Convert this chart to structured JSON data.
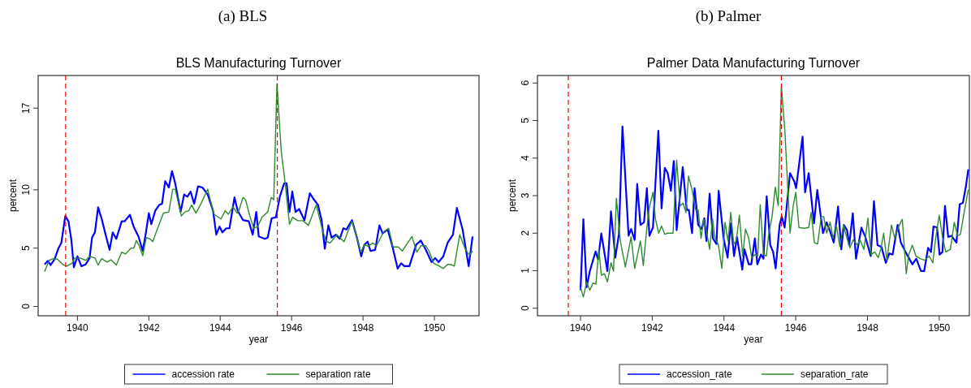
{
  "chart_data": [
    {
      "type": "line",
      "title": "BLS Manufacturing Turnover",
      "annotations": [
        "(a) BLS"
      ],
      "xlabel": "year",
      "ylabel": "percent",
      "xlim": [
        1938.9,
        1951.25
      ],
      "xticks": [
        1940,
        1942,
        1944,
        1946,
        1948,
        1950
      ],
      "ylim": [
        -0.8,
        19.8
      ],
      "yticks": [
        0,
        5,
        10,
        17
      ],
      "legend": "bottom",
      "grid": false,
      "line_style": "solid",
      "marker": "none",
      "ref_lines": [
        {
          "axis": "x",
          "value": 1939.67,
          "color": "#ff0000",
          "line_style": "dashed"
        },
        {
          "axis": "x",
          "value": 1945.6,
          "color": "#ff0000",
          "line_style": "dashed"
        }
      ],
      "series": [
        {
          "name": "accession rate",
          "color": "#0000ff",
          "x": [
            1939.08,
            1939.17,
            1939.25,
            1939.36,
            1939.47,
            1939.55,
            1939.66,
            1939.75,
            1939.83,
            1939.9,
            1940.0,
            1940.11,
            1940.23,
            1940.34,
            1940.41,
            1940.49,
            1940.58,
            1940.68,
            1940.79,
            1940.9,
            1940.99,
            1941.09,
            1941.24,
            1941.32,
            1941.47,
            1941.58,
            1941.71,
            1941.83,
            1941.92,
            1942.0,
            1942.07,
            1942.18,
            1942.29,
            1942.37,
            1942.46,
            1942.56,
            1942.65,
            1942.74,
            1942.89,
            1942.99,
            1943.08,
            1943.17,
            1943.27,
            1943.38,
            1943.5,
            1943.65,
            1943.8,
            1943.89,
            1943.98,
            1944.06,
            1944.17,
            1944.26,
            1944.4,
            1944.49,
            1944.64,
            1944.8,
            1944.91,
            1945.01,
            1945.08,
            1945.25,
            1945.33,
            1945.44,
            1945.56,
            1945.67,
            1945.79,
            1945.86,
            1945.94,
            1946.02,
            1946.11,
            1946.21,
            1946.36,
            1946.51,
            1946.63,
            1946.74,
            1946.84,
            1946.93,
            1947.03,
            1947.12,
            1947.24,
            1947.35,
            1947.45,
            1947.54,
            1947.69,
            1947.83,
            1947.95,
            1948.04,
            1948.13,
            1948.21,
            1948.34,
            1948.46,
            1948.55,
            1948.69,
            1948.82,
            1948.97,
            1949.07,
            1949.16,
            1949.3,
            1949.49,
            1949.62,
            1949.76,
            1949.92,
            1950.02,
            1950.12,
            1950.25,
            1950.37,
            1950.52,
            1950.63,
            1950.79,
            1950.96,
            1951.07
          ],
          "values": [
            3.6,
            3.9,
            3.55,
            4.05,
            5.0,
            5.45,
            7.75,
            7.3,
            5.7,
            3.35,
            4.3,
            3.45,
            3.6,
            4.15,
            5.9,
            6.35,
            8.5,
            7.5,
            6.15,
            4.85,
            6.35,
            5.8,
            7.3,
            7.3,
            7.85,
            6.8,
            6.0,
            4.75,
            6.35,
            8.0,
            7.05,
            8.2,
            8.7,
            8.8,
            10.75,
            10.2,
            11.6,
            10.55,
            8.1,
            9.6,
            9.4,
            9.85,
            8.8,
            10.3,
            10.2,
            9.6,
            8.2,
            6.15,
            6.85,
            6.35,
            6.7,
            6.7,
            9.35,
            8.2,
            7.4,
            7.3,
            6.15,
            8.1,
            6.0,
            5.8,
            5.9,
            7.55,
            7.65,
            9.4,
            10.55,
            10.55,
            8.1,
            9.85,
            8.1,
            8.35,
            7.4,
            9.7,
            9.15,
            8.7,
            7.4,
            4.95,
            6.95,
            5.9,
            6.15,
            5.8,
            6.7,
            6.6,
            7.4,
            5.9,
            4.3,
            5.3,
            5.55,
            4.75,
            4.85,
            6.95,
            6.25,
            6.6,
            5.2,
            3.25,
            3.7,
            3.45,
            3.45,
            5.3,
            5.65,
            4.85,
            3.8,
            4.15,
            3.8,
            4.3,
            5.45,
            6.15,
            8.45,
            6.6,
            3.45,
            6.0
          ]
        },
        {
          "name": "separation rate",
          "color": "#2e8b2e",
          "x": [
            1939.08,
            1939.21,
            1939.32,
            1939.44,
            1939.59,
            1939.7,
            1939.85,
            1939.92,
            1940.08,
            1940.23,
            1940.34,
            1940.49,
            1940.58,
            1940.68,
            1940.83,
            1940.94,
            1941.09,
            1941.24,
            1941.35,
            1941.5,
            1941.58,
            1941.65,
            1941.73,
            1941.83,
            1941.93,
            1942.03,
            1942.11,
            1942.26,
            1942.41,
            1942.56,
            1942.67,
            1942.74,
            1942.82,
            1942.91,
            1943.01,
            1943.12,
            1943.2,
            1943.32,
            1943.46,
            1943.65,
            1943.72,
            1943.83,
            1944.02,
            1944.14,
            1944.23,
            1944.36,
            1944.47,
            1944.52,
            1944.64,
            1944.71,
            1944.83,
            1944.94,
            1945.05,
            1945.17,
            1945.33,
            1945.43,
            1945.5,
            1945.59,
            1945.71,
            1945.82,
            1945.94,
            1946.03,
            1946.17,
            1946.32,
            1946.47,
            1946.69,
            1946.86,
            1946.97,
            1947.08,
            1947.27,
            1947.47,
            1947.69,
            1947.83,
            1947.94,
            1948.04,
            1948.15,
            1948.27,
            1948.38,
            1948.57,
            1948.72,
            1948.84,
            1948.99,
            1949.1,
            1949.22,
            1949.37,
            1949.51,
            1949.62,
            1949.76,
            1949.85,
            1949.98,
            1950.14,
            1950.25,
            1950.37,
            1950.46,
            1950.56,
            1950.71,
            1950.86,
            1950.98,
            1951.07
          ],
          "values": [
            3.0,
            3.95,
            4.1,
            4.05,
            3.6,
            3.45,
            3.7,
            4.15,
            4.15,
            3.95,
            4.3,
            4.15,
            3.55,
            4.1,
            3.8,
            4.0,
            3.55,
            4.65,
            4.5,
            5.0,
            5.0,
            5.65,
            5.2,
            4.35,
            5.9,
            5.8,
            5.55,
            6.8,
            8.0,
            8.1,
            10.05,
            10.05,
            9.0,
            7.75,
            8.1,
            8.2,
            8.7,
            8.0,
            8.8,
            10.05,
            9.15,
            7.9,
            7.5,
            8.2,
            7.9,
            8.55,
            8.0,
            8.2,
            9.35,
            9.15,
            7.75,
            6.7,
            6.85,
            7.65,
            8.1,
            9.35,
            9.15,
            19.1,
            13.3,
            10.55,
            7.05,
            7.65,
            7.35,
            7.35,
            6.95,
            8.7,
            6.6,
            5.55,
            5.45,
            6.15,
            5.55,
            7.3,
            5.9,
            4.65,
            5.3,
            5.15,
            5.45,
            5.2,
            6.35,
            6.7,
            5.1,
            5.1,
            4.75,
            5.3,
            6.0,
            4.65,
            5.2,
            5.2,
            4.75,
            3.7,
            3.45,
            3.25,
            3.6,
            3.6,
            3.45,
            6.15,
            4.95,
            4.4,
            4.75
          ]
        }
      ]
    },
    {
      "type": "line",
      "title": "Palmer Data Manufacturing Turnover",
      "annotations": [
        "(b) Palmer"
      ],
      "xlabel": "year",
      "ylabel": "percent",
      "xlim": [
        1938.8,
        1950.84
      ],
      "xticks": [
        1940,
        1942,
        1944,
        1946,
        1948,
        1950
      ],
      "ylim": [
        -0.2,
        6.2
      ],
      "yticks": [
        0,
        1,
        2,
        3,
        4,
        5,
        6
      ],
      "legend": "bottom",
      "grid": false,
      "line_style": "solid",
      "marker": "none",
      "ref_lines": [
        {
          "axis": "x",
          "value": 1939.66,
          "color": "#ff0000",
          "line_style": "dashed"
        },
        {
          "axis": "x",
          "value": 1945.6,
          "color": "#ff0000",
          "line_style": "dashed"
        }
      ],
      "series": [
        {
          "name": "accession_rate",
          "color": "#0000ff",
          "x": [
            1940.0,
            1940.08,
            1940.17,
            1940.26,
            1940.42,
            1940.49,
            1940.58,
            1940.75,
            1940.85,
            1940.97,
            1941.07,
            1941.17,
            1941.34,
            1941.41,
            1941.51,
            1941.58,
            1941.67,
            1941.77,
            1941.85,
            1941.92,
            1942.02,
            1942.17,
            1942.26,
            1942.35,
            1942.43,
            1942.52,
            1942.6,
            1942.68,
            1942.85,
            1942.96,
            1943.02,
            1943.11,
            1943.18,
            1943.28,
            1943.38,
            1943.45,
            1943.51,
            1943.6,
            1943.69,
            1943.79,
            1943.85,
            1943.99,
            1944.1,
            1944.19,
            1944.28,
            1944.36,
            1944.51,
            1944.57,
            1944.69,
            1944.76,
            1944.86,
            1944.93,
            1945.03,
            1945.1,
            1945.19,
            1945.29,
            1945.37,
            1945.44,
            1945.55,
            1945.61,
            1945.69,
            1945.84,
            1945.96,
            1946.01,
            1946.19,
            1946.26,
            1946.36,
            1946.51,
            1946.6,
            1946.69,
            1946.76,
            1946.86,
            1946.96,
            1947.06,
            1947.18,
            1947.27,
            1947.34,
            1947.43,
            1947.49,
            1947.59,
            1947.68,
            1947.83,
            1947.94,
            1948.09,
            1948.18,
            1948.28,
            1948.39,
            1948.51,
            1948.61,
            1948.7,
            1948.84,
            1948.93,
            1949.06,
            1949.25,
            1949.36,
            1949.49,
            1949.58,
            1949.69,
            1949.77,
            1949.84,
            1949.94,
            1950.01,
            1950.09,
            1950.16,
            1950.25,
            1950.34,
            1950.48,
            1950.57,
            1950.66,
            1950.74,
            1950.81
          ],
          "values": [
            0.48,
            2.37,
            0.56,
            0.99,
            1.51,
            1.3,
            1.99,
            0.99,
            2.58,
            1.35,
            1.97,
            4.84,
            1.93,
            2.11,
            1.82,
            3.31,
            2.22,
            2.29,
            3.2,
            1.93,
            2.15,
            4.73,
            2.66,
            3.74,
            3.6,
            3.13,
            3.92,
            2.08,
            3.76,
            2.62,
            2.62,
            2.0,
            3.2,
            2.22,
            2.11,
            2.4,
            1.79,
            3.05,
            1.86,
            1.71,
            3.13,
            1.86,
            1.35,
            2.26,
            1.39,
            1.9,
            1.03,
            1.57,
            1.17,
            1.17,
            1.86,
            1.17,
            1.43,
            1.32,
            2.98,
            1.68,
            1.5,
            1.06,
            2.22,
            2.44,
            2.15,
            3.6,
            3.38,
            3.2,
            4.57,
            3.09,
            3.6,
            2.26,
            3.15,
            2.51,
            2.0,
            2.29,
            2.04,
            1.75,
            2.71,
            1.57,
            2.22,
            2.08,
            1.68,
            2.53,
            1.32,
            2.15,
            1.9,
            1.39,
            2.85,
            1.68,
            1.63,
            1.21,
            1.46,
            1.43,
            2.22,
            1.75,
            1.5,
            1.17,
            1.32,
            0.99,
            0.99,
            1.61,
            1.5,
            2.18,
            2.15,
            1.43,
            1.5,
            2.73,
            1.9,
            1.93,
            1.75,
            2.77,
            2.81,
            3.23,
            3.7
          ]
        },
        {
          "name": "separation_rate",
          "color": "#2e8b2e",
          "x": [
            1940.0,
            1940.08,
            1940.17,
            1940.26,
            1940.35,
            1940.43,
            1940.51,
            1940.58,
            1940.67,
            1940.75,
            1940.85,
            1940.92,
            1941.0,
            1941.11,
            1941.25,
            1941.41,
            1941.51,
            1941.67,
            1941.75,
            1941.85,
            1941.92,
            1942.02,
            1942.09,
            1942.18,
            1942.26,
            1942.35,
            1942.43,
            1942.58,
            1942.68,
            1942.78,
            1942.86,
            1942.94,
            1943.01,
            1943.11,
            1943.21,
            1943.28,
            1943.36,
            1943.43,
            1943.51,
            1943.6,
            1943.68,
            1943.75,
            1943.84,
            1943.94,
            1944.03,
            1944.11,
            1944.19,
            1944.27,
            1944.34,
            1944.43,
            1944.52,
            1944.6,
            1944.69,
            1944.77,
            1944.87,
            1944.94,
            1945.01,
            1945.1,
            1945.18,
            1945.25,
            1945.34,
            1945.43,
            1945.51,
            1945.6,
            1945.7,
            1945.84,
            1945.93,
            1946.0,
            1946.09,
            1946.22,
            1946.36,
            1946.43,
            1946.52,
            1946.61,
            1946.71,
            1946.78,
            1946.86,
            1946.96,
            1947.04,
            1947.13,
            1947.23,
            1947.33,
            1947.43,
            1947.51,
            1947.6,
            1947.72,
            1947.79,
            1947.9,
            1948.01,
            1948.1,
            1948.2,
            1948.3,
            1948.37,
            1948.45,
            1948.54,
            1948.67,
            1948.76,
            1948.87,
            1948.97,
            1949.08,
            1949.15,
            1949.25,
            1949.35,
            1949.47,
            1949.6,
            1949.72,
            1949.82,
            1949.9,
            1950.0,
            1950.09,
            1950.18,
            1950.31,
            1950.42,
            1950.51,
            1950.59,
            1950.7,
            1950.81
          ],
          "values": [
            0.56,
            0.3,
            0.7,
            0.48,
            0.67,
            0.64,
            1.57,
            0.88,
            0.92,
            0.7,
            1.21,
            0.99,
            2.93,
            1.79,
            1.1,
            1.9,
            1.06,
            1.79,
            1.14,
            2.15,
            2.69,
            3.09,
            2.37,
            2.0,
            2.19,
            1.97,
            2.0,
            2.0,
            3.94,
            2.73,
            2.8,
            2.55,
            3.52,
            3.16,
            2.62,
            2.62,
            1.86,
            2.37,
            2.06,
            1.57,
            2.38,
            1.86,
            1.71,
            1.06,
            2.29,
            1.79,
            2.55,
            1.71,
            1.79,
            2.48,
            1.39,
            2.11,
            1.86,
            1.35,
            1.43,
            1.39,
            2.76,
            1.43,
            1.39,
            2.0,
            2.44,
            3.23,
            2.73,
            5.91,
            4.68,
            2.0,
            2.73,
            3.09,
            2.15,
            2.13,
            2.15,
            2.55,
            1.75,
            1.71,
            2.44,
            2.44,
            2.0,
            2.29,
            1.86,
            2.22,
            1.64,
            2.22,
            1.86,
            1.61,
            1.82,
            1.68,
            1.82,
            1.57,
            2.4,
            1.43,
            1.5,
            1.35,
            1.57,
            2.0,
            1.28,
            2.22,
            1.86,
            2.18,
            2.37,
            0.92,
            1.43,
            1.68,
            1.39,
            1.32,
            1.28,
            1.39,
            1.21,
            1.86,
            2.48,
            1.9,
            1.5,
            1.57,
            2.29,
            1.93,
            1.97,
            2.58,
            3.16
          ]
        }
      ]
    }
  ]
}
